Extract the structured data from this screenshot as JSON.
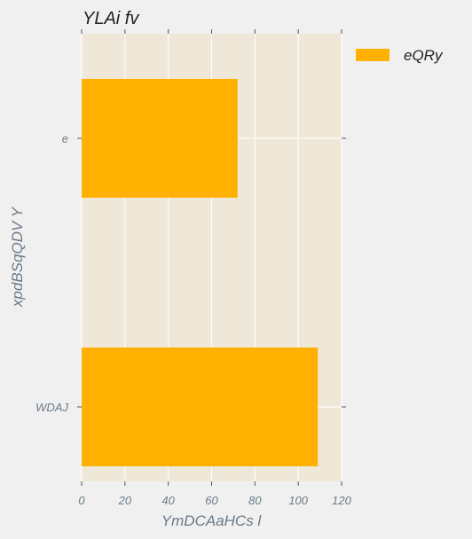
{
  "chart_data": {
    "type": "bar",
    "orientation": "horizontal",
    "title": "YLAi fv",
    "xlabel": "YmDCAaHCs  l",
    "ylabel": "xpdBSqQDV Y",
    "categories": [
      "e",
      "WDAJ"
    ],
    "series": [
      {
        "name": "eQRy",
        "values": [
          72,
          109
        ],
        "color": "#ffb000"
      }
    ],
    "xlim": [
      0,
      120
    ],
    "xticks": [
      "0",
      "20",
      "40",
      "60",
      "80",
      "100",
      "120"
    ],
    "grid": true,
    "legend_position": "right",
    "colors": {
      "plot_background": "#efe8d8",
      "page_background": "#f0f0f0",
      "bar": "#ffb000",
      "axis_text": "#6c7a86",
      "title_text": "#222222"
    }
  }
}
